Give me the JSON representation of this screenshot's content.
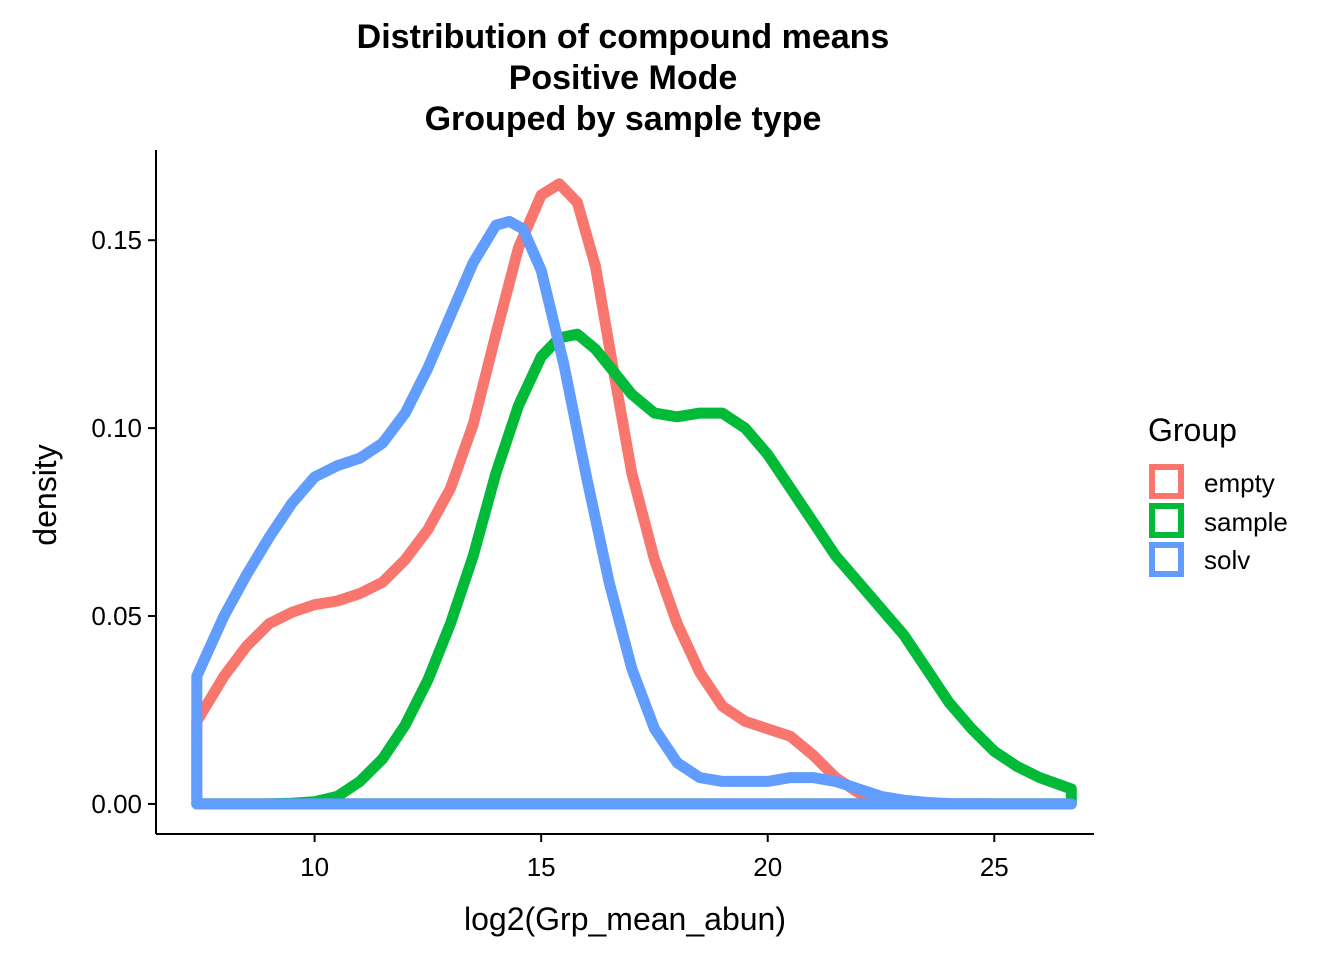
{
  "chart_data": {
    "type": "density",
    "title_lines": [
      "Distribution of compound means",
      "Positive Mode",
      "Grouped by sample type"
    ],
    "xlabel": "log2(Grp_mean_abun)",
    "ylabel": "density",
    "xlim": [
      6.5,
      27.2
    ],
    "ylim": [
      -0.008,
      0.174
    ],
    "x_ticks": [
      10,
      15,
      20,
      25
    ],
    "y_ticks": [
      0.0,
      0.05,
      0.1,
      0.15
    ],
    "x_tick_labels": [
      "10",
      "15",
      "20",
      "25"
    ],
    "y_tick_labels": [
      "0.00",
      "0.05",
      "0.10",
      "0.15"
    ],
    "legend": {
      "title": "Group",
      "position": "right",
      "entries": [
        "empty",
        "sample",
        "solv"
      ]
    },
    "series": [
      {
        "name": "empty",
        "color": "#F8766D",
        "x_range": [
          7.4,
          26.7
        ],
        "x": [
          7.4,
          8.0,
          8.5,
          9.0,
          9.5,
          10.0,
          10.5,
          11.0,
          11.5,
          12.0,
          12.5,
          13.0,
          13.5,
          14.0,
          14.5,
          15.0,
          15.4,
          15.8,
          16.2,
          16.6,
          17.0,
          17.5,
          18.0,
          18.5,
          19.0,
          19.5,
          20.0,
          20.5,
          21.0,
          21.5,
          22.0,
          22.5,
          23.0,
          23.5,
          24.0,
          24.5,
          25.0,
          26.0,
          26.7
        ],
        "values": [
          0.022,
          0.034,
          0.042,
          0.048,
          0.051,
          0.053,
          0.054,
          0.056,
          0.059,
          0.065,
          0.073,
          0.084,
          0.101,
          0.125,
          0.148,
          0.162,
          0.165,
          0.16,
          0.143,
          0.115,
          0.088,
          0.065,
          0.048,
          0.035,
          0.026,
          0.022,
          0.02,
          0.018,
          0.013,
          0.007,
          0.003,
          0.001,
          0.0003,
          0.0001,
          0.0,
          0.0,
          0.0,
          0.0,
          0.0
        ]
      },
      {
        "name": "sample",
        "color": "#00BA38",
        "x_range": [
          7.4,
          26.7
        ],
        "x": [
          7.4,
          8.0,
          8.5,
          9.0,
          9.5,
          10.0,
          10.5,
          11.0,
          11.5,
          12.0,
          12.5,
          13.0,
          13.5,
          14.0,
          14.5,
          15.0,
          15.4,
          15.8,
          16.2,
          16.6,
          17.0,
          17.5,
          18.0,
          18.5,
          19.0,
          19.5,
          20.0,
          20.5,
          21.0,
          21.5,
          22.0,
          22.5,
          23.0,
          23.5,
          24.0,
          24.5,
          25.0,
          25.5,
          26.0,
          26.7
        ],
        "values": [
          0.0,
          0.0,
          0.0,
          0.0,
          0.0002,
          0.0006,
          0.002,
          0.006,
          0.012,
          0.021,
          0.033,
          0.048,
          0.066,
          0.088,
          0.106,
          0.119,
          0.124,
          0.125,
          0.121,
          0.115,
          0.109,
          0.104,
          0.103,
          0.104,
          0.104,
          0.1,
          0.093,
          0.084,
          0.075,
          0.066,
          0.059,
          0.052,
          0.045,
          0.036,
          0.027,
          0.02,
          0.014,
          0.01,
          0.007,
          0.004
        ]
      },
      {
        "name": "solv",
        "color": "#619CFF",
        "x_range": [
          7.4,
          26.7
        ],
        "x": [
          7.4,
          8.0,
          8.5,
          9.0,
          9.5,
          10.0,
          10.5,
          11.0,
          11.5,
          12.0,
          12.5,
          13.0,
          13.5,
          14.0,
          14.3,
          14.6,
          15.0,
          15.5,
          16.0,
          16.5,
          17.0,
          17.5,
          18.0,
          18.5,
          19.0,
          19.5,
          20.0,
          20.5,
          21.0,
          21.5,
          22.0,
          22.5,
          23.0,
          23.5,
          24.0,
          25.0,
          26.0,
          26.7
        ],
        "values": [
          0.034,
          0.05,
          0.061,
          0.071,
          0.08,
          0.087,
          0.09,
          0.092,
          0.096,
          0.104,
          0.116,
          0.13,
          0.144,
          0.154,
          0.155,
          0.153,
          0.142,
          0.117,
          0.087,
          0.059,
          0.036,
          0.02,
          0.011,
          0.007,
          0.006,
          0.006,
          0.006,
          0.007,
          0.007,
          0.006,
          0.004,
          0.002,
          0.001,
          0.0004,
          0.0001,
          0.0,
          0.0,
          0.0
        ]
      }
    ]
  }
}
